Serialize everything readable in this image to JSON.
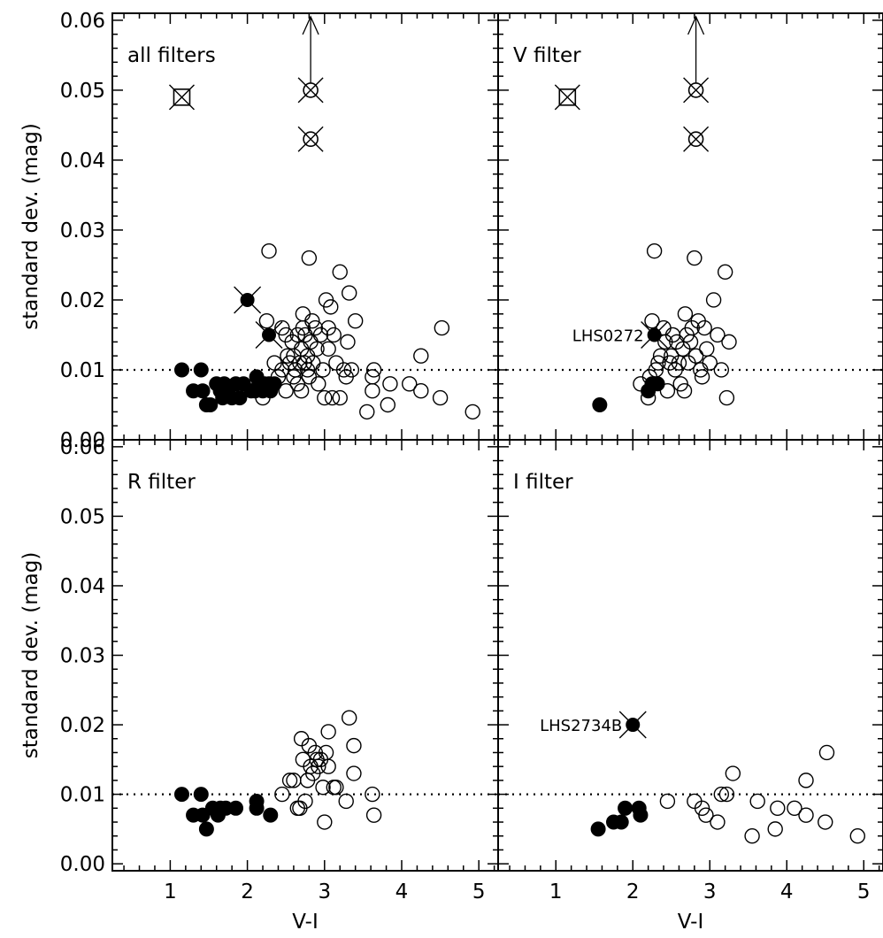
{
  "chart_data": [
    {
      "type": "scatter",
      "panel_label": "all filters",
      "xlabel": "",
      "ylabel": "standard dev. (mag)",
      "xlim": [
        0.25,
        5.25
      ],
      "ylim": [
        0.0,
        0.061
      ],
      "x_ticks": [],
      "y_ticks": [
        "0.00",
        "0.01",
        "0.02",
        "0.03",
        "0.04",
        "0.05",
        "0.06"
      ],
      "reference_line": 0.01,
      "series": [
        {
          "marker": "filled-circle",
          "points": [
            [
              1.15,
              0.01
            ],
            [
              1.3,
              0.007
            ],
            [
              1.4,
              0.01
            ],
            [
              1.42,
              0.007
            ],
            [
              1.47,
              0.005
            ],
            [
              1.52,
              0.005
            ],
            [
              1.6,
              0.008
            ],
            [
              1.65,
              0.007
            ],
            [
              1.68,
              0.006
            ],
            [
              1.7,
              0.008
            ],
            [
              1.72,
              0.007
            ],
            [
              1.8,
              0.006
            ],
            [
              1.85,
              0.008
            ],
            [
              1.9,
              0.006
            ],
            [
              1.95,
              0.008
            ],
            [
              2.05,
              0.007
            ],
            [
              2.1,
              0.007
            ],
            [
              2.12,
              0.009
            ],
            [
              2.15,
              0.008
            ],
            [
              2.2,
              0.007
            ],
            [
              2.22,
              0.008
            ],
            [
              2.28,
              0.008
            ],
            [
              2.3,
              0.007
            ],
            [
              2.35,
              0.008
            ]
          ]
        },
        {
          "marker": "open-circle",
          "points": [
            [
              2.2,
              0.006
            ],
            [
              2.25,
              0.017
            ],
            [
              2.28,
              0.027
            ],
            [
              2.35,
              0.011
            ],
            [
              2.4,
              0.009
            ],
            [
              2.45,
              0.01
            ],
            [
              2.45,
              0.016
            ],
            [
              2.5,
              0.007
            ],
            [
              2.5,
              0.015
            ],
            [
              2.52,
              0.012
            ],
            [
              2.55,
              0.011
            ],
            [
              2.58,
              0.014
            ],
            [
              2.6,
              0.009
            ],
            [
              2.6,
              0.012
            ],
            [
              2.62,
              0.01
            ],
            [
              2.65,
              0.015
            ],
            [
              2.65,
              0.008
            ],
            [
              2.68,
              0.011
            ],
            [
              2.7,
              0.007
            ],
            [
              2.7,
              0.013
            ],
            [
              2.72,
              0.018
            ],
            [
              2.72,
              0.016
            ],
            [
              2.74,
              0.011
            ],
            [
              2.75,
              0.015
            ],
            [
              2.78,
              0.01
            ],
            [
              2.78,
              0.012
            ],
            [
              2.8,
              0.026
            ],
            [
              2.8,
              0.009
            ],
            [
              2.82,
              0.014
            ],
            [
              2.84,
              0.017
            ],
            [
              2.85,
              0.011
            ],
            [
              2.88,
              0.016
            ],
            [
              2.9,
              0.013
            ],
            [
              2.92,
              0.008
            ],
            [
              2.95,
              0.015
            ],
            [
              2.98,
              0.01
            ],
            [
              3.0,
              0.006
            ],
            [
              3.02,
              0.02
            ],
            [
              3.05,
              0.016
            ],
            [
              3.05,
              0.013
            ],
            [
              3.08,
              0.019
            ],
            [
              3.1,
              0.006
            ],
            [
              3.12,
              0.015
            ],
            [
              3.15,
              0.011
            ],
            [
              3.2,
              0.024
            ],
            [
              3.2,
              0.006
            ],
            [
              3.25,
              0.01
            ],
            [
              3.28,
              0.009
            ],
            [
              3.3,
              0.014
            ],
            [
              3.32,
              0.021
            ],
            [
              3.35,
              0.01
            ],
            [
              3.4,
              0.017
            ],
            [
              3.55,
              0.004
            ],
            [
              3.62,
              0.009
            ],
            [
              3.62,
              0.007
            ],
            [
              3.64,
              0.01
            ],
            [
              3.82,
              0.005
            ],
            [
              3.85,
              0.008
            ],
            [
              4.1,
              0.008
            ],
            [
              4.25,
              0.012
            ],
            [
              4.25,
              0.007
            ],
            [
              4.5,
              0.006
            ],
            [
              4.52,
              0.016
            ],
            [
              4.92,
              0.004
            ]
          ]
        },
        {
          "marker": "filled-circle-cross",
          "points": [
            [
              2.0,
              0.02
            ],
            [
              2.28,
              0.015
            ]
          ]
        },
        {
          "marker": "square-x",
          "points": [
            [
              1.15,
              0.049
            ]
          ]
        },
        {
          "marker": "circle-x",
          "points": [
            [
              2.82,
              0.05
            ],
            [
              2.82,
              0.043
            ]
          ]
        }
      ],
      "upper_limit_arrow": {
        "x": 2.82,
        "from": 0.05,
        "to": 0.061
      }
    },
    {
      "type": "scatter",
      "panel_label": "V filter",
      "xlabel": "",
      "ylabel": "",
      "xlim": [
        0.25,
        5.25
      ],
      "ylim": [
        0.0,
        0.061
      ],
      "x_ticks": [],
      "y_ticks": [],
      "reference_line": 0.01,
      "annotations": [
        {
          "text": "LHS0272",
          "x": 2.28,
          "y": 0.015
        }
      ],
      "series": [
        {
          "marker": "filled-circle",
          "points": [
            [
              1.57,
              0.005
            ],
            [
              2.2,
              0.007
            ],
            [
              2.25,
              0.008
            ],
            [
              2.32,
              0.008
            ]
          ]
        },
        {
          "marker": "open-circle",
          "points": [
            [
              2.1,
              0.008
            ],
            [
              2.2,
              0.006
            ],
            [
              2.22,
              0.009
            ],
            [
              2.25,
              0.017
            ],
            [
              2.28,
              0.027
            ],
            [
              2.3,
              0.01
            ],
            [
              2.33,
              0.011
            ],
            [
              2.36,
              0.012
            ],
            [
              2.4,
              0.016
            ],
            [
              2.42,
              0.014
            ],
            [
              2.45,
              0.007
            ],
            [
              2.48,
              0.011
            ],
            [
              2.5,
              0.012
            ],
            [
              2.52,
              0.015
            ],
            [
              2.55,
              0.01
            ],
            [
              2.57,
              0.014
            ],
            [
              2.6,
              0.011
            ],
            [
              2.62,
              0.008
            ],
            [
              2.65,
              0.013
            ],
            [
              2.67,
              0.007
            ],
            [
              2.68,
              0.018
            ],
            [
              2.7,
              0.015
            ],
            [
              2.72,
              0.011
            ],
            [
              2.75,
              0.014
            ],
            [
              2.77,
              0.016
            ],
            [
              2.8,
              0.026
            ],
            [
              2.82,
              0.012
            ],
            [
              2.85,
              0.017
            ],
            [
              2.88,
              0.01
            ],
            [
              2.9,
              0.009
            ],
            [
              2.93,
              0.016
            ],
            [
              2.96,
              0.013
            ],
            [
              3.0,
              0.011
            ],
            [
              3.05,
              0.02
            ],
            [
              3.1,
              0.015
            ],
            [
              3.15,
              0.01
            ],
            [
              3.2,
              0.024
            ],
            [
              3.22,
              0.006
            ],
            [
              3.25,
              0.014
            ]
          ]
        },
        {
          "marker": "filled-circle-cross",
          "points": [
            [
              2.28,
              0.015
            ]
          ]
        },
        {
          "marker": "square-x",
          "points": [
            [
              1.15,
              0.049
            ]
          ]
        },
        {
          "marker": "circle-x",
          "points": [
            [
              2.82,
              0.05
            ],
            [
              2.82,
              0.043
            ]
          ]
        }
      ],
      "upper_limit_arrow": {
        "x": 2.82,
        "from": 0.05,
        "to": 0.061
      }
    },
    {
      "type": "scatter",
      "panel_label": "R filter",
      "xlabel": "V-I",
      "ylabel": "standard dev. (mag)",
      "xlim": [
        0.25,
        5.25
      ],
      "ylim": [
        -0.001,
        0.061
      ],
      "x_ticks": [
        "1",
        "2",
        "3",
        "4",
        "5"
      ],
      "y_ticks": [
        "0.00",
        "0.01",
        "0.02",
        "0.03",
        "0.04",
        "0.05",
        "0.06"
      ],
      "reference_line": 0.01,
      "series": [
        {
          "marker": "filled-circle",
          "points": [
            [
              1.15,
              0.01
            ],
            [
              1.3,
              0.007
            ],
            [
              1.4,
              0.01
            ],
            [
              1.42,
              0.007
            ],
            [
              1.47,
              0.005
            ],
            [
              1.55,
              0.008
            ],
            [
              1.62,
              0.007
            ],
            [
              1.65,
              0.008
            ],
            [
              1.72,
              0.008
            ],
            [
              1.85,
              0.008
            ],
            [
              2.12,
              0.009
            ],
            [
              2.12,
              0.008
            ],
            [
              2.3,
              0.007
            ]
          ]
        },
        {
          "marker": "open-circle",
          "points": [
            [
              2.45,
              0.01
            ],
            [
              2.55,
              0.012
            ],
            [
              2.6,
              0.012
            ],
            [
              2.65,
              0.008
            ],
            [
              2.68,
              0.008
            ],
            [
              2.7,
              0.018
            ],
            [
              2.72,
              0.015
            ],
            [
              2.75,
              0.009
            ],
            [
              2.78,
              0.012
            ],
            [
              2.8,
              0.017
            ],
            [
              2.82,
              0.014
            ],
            [
              2.85,
              0.013
            ],
            [
              2.88,
              0.016
            ],
            [
              2.9,
              0.015
            ],
            [
              2.92,
              0.014
            ],
            [
              2.95,
              0.015
            ],
            [
              2.98,
              0.011
            ],
            [
              3.0,
              0.006
            ],
            [
              3.02,
              0.016
            ],
            [
              3.05,
              0.019
            ],
            [
              3.05,
              0.014
            ],
            [
              3.12,
              0.011
            ],
            [
              3.15,
              0.011
            ],
            [
              3.28,
              0.009
            ],
            [
              3.32,
              0.021
            ],
            [
              3.38,
              0.017
            ],
            [
              3.38,
              0.013
            ],
            [
              3.62,
              0.01
            ],
            [
              3.64,
              0.007
            ]
          ]
        }
      ]
    },
    {
      "type": "scatter",
      "panel_label": "I filter",
      "xlabel": "V-I",
      "ylabel": "",
      "xlim": [
        0.25,
        5.25
      ],
      "ylim": [
        -0.001,
        0.061
      ],
      "x_ticks": [
        "1",
        "2",
        "3",
        "4",
        "5"
      ],
      "y_ticks": [],
      "reference_line": 0.01,
      "annotations": [
        {
          "text": "LHS2734B",
          "x": 2.0,
          "y": 0.02
        }
      ],
      "series": [
        {
          "marker": "filled-circle",
          "points": [
            [
              1.55,
              0.005
            ],
            [
              1.75,
              0.006
            ],
            [
              1.85,
              0.006
            ],
            [
              1.9,
              0.008
            ],
            [
              2.08,
              0.008
            ],
            [
              2.1,
              0.007
            ]
          ]
        },
        {
          "marker": "open-circle",
          "points": [
            [
              2.45,
              0.009
            ],
            [
              2.8,
              0.009
            ],
            [
              2.9,
              0.008
            ],
            [
              2.95,
              0.007
            ],
            [
              3.1,
              0.006
            ],
            [
              3.15,
              0.01
            ],
            [
              3.22,
              0.01
            ],
            [
              3.3,
              0.013
            ],
            [
              3.55,
              0.004
            ],
            [
              3.62,
              0.009
            ],
            [
              3.85,
              0.005
            ],
            [
              3.88,
              0.008
            ],
            [
              4.1,
              0.008
            ],
            [
              4.25,
              0.012
            ],
            [
              4.25,
              0.007
            ],
            [
              4.5,
              0.006
            ],
            [
              4.52,
              0.016
            ],
            [
              4.92,
              0.004
            ]
          ]
        },
        {
          "marker": "filled-circle-cross",
          "points": [
            [
              2.0,
              0.02
            ]
          ]
        }
      ]
    }
  ]
}
